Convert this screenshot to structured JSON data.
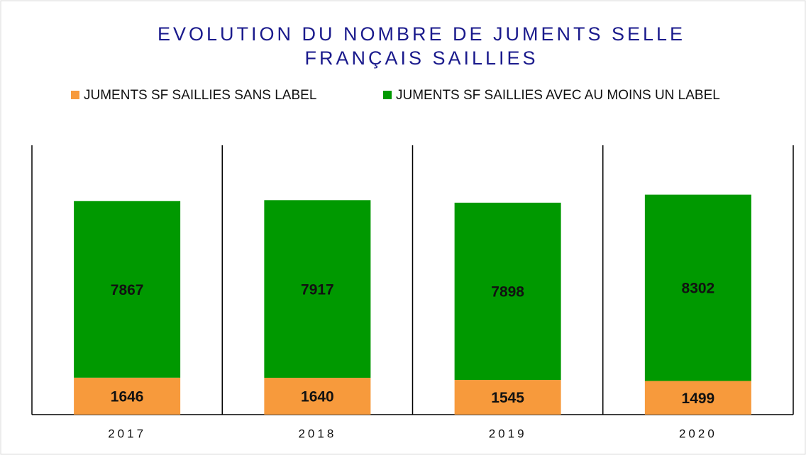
{
  "chart_data": {
    "type": "stacked-bar",
    "title": [
      "EVOLUTION DU NOMBRE DE JUMENTS SELLE",
      "FRANÇAIS SAILLIES"
    ],
    "categories": [
      "2017",
      "2018",
      "2019",
      "2020"
    ],
    "series": [
      {
        "name": "JUMENTS SF SAILLIES SANS LABEL",
        "color": "#f79a3c",
        "values": [
          1646,
          1640,
          1545,
          1499
        ]
      },
      {
        "name": "JUMENTS SF SAILLIES AVEC AU MOINS UN LABEL",
        "color": "#009900",
        "values": [
          7867,
          7917,
          7898,
          8302
        ]
      }
    ],
    "ylim": [
      0,
      12000
    ],
    "legend": "top"
  }
}
